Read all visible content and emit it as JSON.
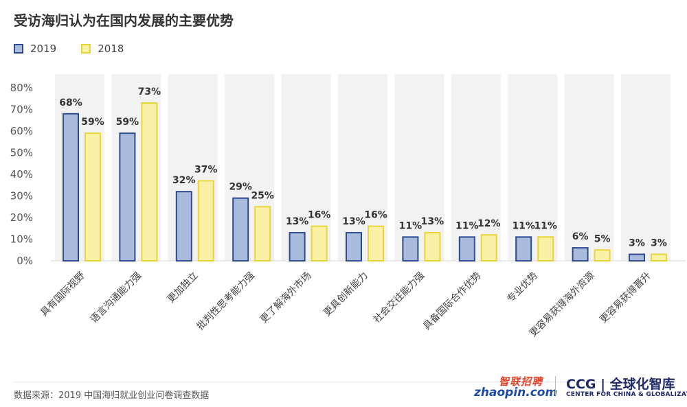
{
  "title": "受访海归认为在国内发展的主要优势",
  "source_note": "数据来源：2019 中国海归就业创业问卷调查数据",
  "logos": {
    "zhaopin_cn": "智联招聘",
    "zhaopin_en": "zhaopin.com",
    "ccg_main": "CCG | 全球化智库",
    "ccg_sub": "CENTER FOR CHINA & GLOBALIZATION"
  },
  "colors": {
    "series_2019_fill": "#a9bcdd",
    "series_2019_stroke": "#2e4a8e",
    "series_2018_fill": "#faf0a6",
    "series_2018_stroke": "#e8d53a",
    "band": "#f2f2f2",
    "axis_text": "#555555",
    "label_text": "#333333"
  },
  "chart_data": {
    "type": "bar",
    "title": "受访海归认为在国内发展的主要优势",
    "categories": [
      "具有国际视野",
      "语言沟通能力强",
      "更加独立",
      "批判性思考能力强",
      "更了解海外市场",
      "更具创新能力",
      "社会交往能力强",
      "具备国际合作优势",
      "专业优势",
      "更容易获得海外资源",
      "更容易获得晋升"
    ],
    "series": [
      {
        "name": "2019",
        "values": [
          68,
          59,
          32,
          29,
          13,
          13,
          11,
          11,
          11,
          6,
          3
        ]
      },
      {
        "name": "2018",
        "values": [
          59,
          73,
          37,
          25,
          16,
          16,
          13,
          12,
          11,
          5,
          3
        ]
      }
    ],
    "data_labels": {
      "2019": [
        "68%",
        "59%",
        "32%",
        "29%",
        "13%",
        "13%",
        "11%",
        "11%",
        "11%",
        "6%",
        "3%"
      ],
      "2018": [
        "59%",
        "73%",
        "37%",
        "25%",
        "16%",
        "16%",
        "13%",
        "12%",
        "11%",
        "5%",
        "3%"
      ]
    },
    "yticks": [
      0,
      10,
      20,
      30,
      40,
      50,
      60,
      70,
      80
    ],
    "ytick_labels": [
      "0%",
      "10%",
      "20%",
      "30%",
      "40%",
      "50%",
      "60%",
      "70%",
      "80%"
    ],
    "ylim": [
      0,
      80
    ],
    "xlabel": "",
    "ylabel": "",
    "legend": "top-left",
    "grid": false
  }
}
